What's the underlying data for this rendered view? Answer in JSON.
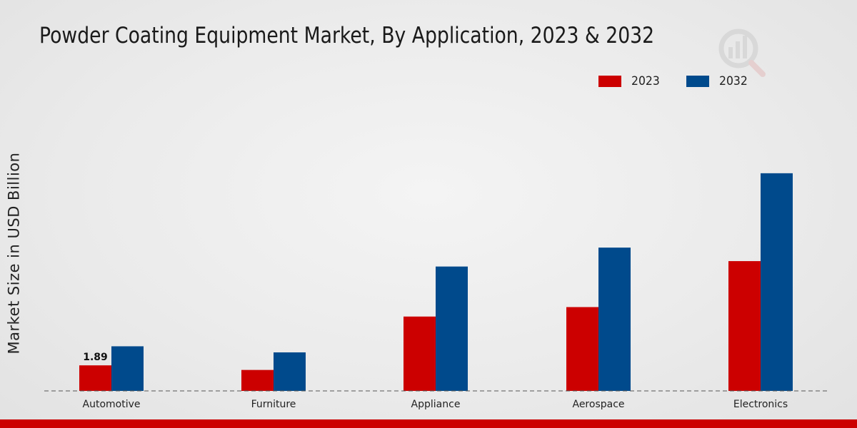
{
  "chart_data": {
    "type": "bar",
    "title": "Powder Coating Equipment Market, By Application, 2023 & 2032",
    "xlabel": "",
    "ylabel": "Market Size in USD Billion",
    "categories": [
      "Automotive",
      "Furniture",
      "Appliance",
      "Aerospace",
      "Electronics"
    ],
    "series": [
      {
        "name": "2023",
        "color": "#cc0000",
        "values": [
          1.89,
          1.55,
          5.5,
          6.2,
          9.6
        ]
      },
      {
        "name": "2032",
        "color": "#004a8c",
        "values": [
          3.3,
          2.85,
          9.2,
          10.6,
          16.1
        ]
      }
    ],
    "data_labels": [
      {
        "series": 0,
        "index": 0,
        "text": "1.89"
      }
    ],
    "ylim": [
      0,
      21
    ],
    "grid": false,
    "legend_position": "top-right"
  }
}
